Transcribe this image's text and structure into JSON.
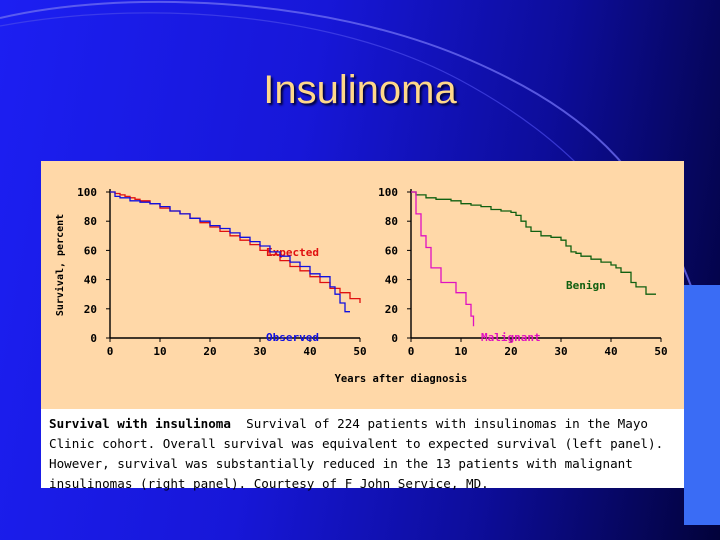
{
  "slide": {
    "title": "Insulinoma"
  },
  "figure": {
    "ylabel": "Survival, percent",
    "xlabel": "Years after diagnosis",
    "caption_title": "Survival with insulinoma",
    "caption_text": "Survival of 224 patients with insulinomas in the Mayo Clinic cohort. Overall survival was equivalent to expected survival (left panel). However, survival was substantially reduced in the 13 patients with malignant insulinomas (right panel). Courtesy of F John Service, MD."
  },
  "colors": {
    "expected": "#e01010",
    "observed": "#1010e0",
    "benign": "#106010",
    "malignant": "#e010c0",
    "figure_bg": "#ffd8a8"
  },
  "chart_data": [
    {
      "type": "line",
      "step": true,
      "xlim": [
        0,
        50
      ],
      "ylim": [
        0,
        100
      ],
      "xticks": [
        0,
        10,
        20,
        30,
        40,
        50
      ],
      "yticks": [
        0,
        20,
        40,
        60,
        80,
        100
      ],
      "series": [
        {
          "name": "Expected",
          "color_key": "expected",
          "label_class": "expected",
          "points": [
            [
              0,
              100
            ],
            [
              1,
              99
            ],
            [
              2,
              98
            ],
            [
              3,
              97
            ],
            [
              4,
              96
            ],
            [
              5,
              95
            ],
            [
              6,
              94
            ],
            [
              8,
              92
            ],
            [
              10,
              89
            ],
            [
              12,
              87
            ],
            [
              14,
              85
            ],
            [
              16,
              82
            ],
            [
              18,
              79
            ],
            [
              20,
              76
            ],
            [
              22,
              73
            ],
            [
              24,
              70
            ],
            [
              26,
              67
            ],
            [
              28,
              64
            ],
            [
              30,
              60
            ],
            [
              32,
              57
            ],
            [
              34,
              53
            ],
            [
              36,
              49
            ],
            [
              38,
              46
            ],
            [
              40,
              42
            ],
            [
              42,
              38
            ],
            [
              44,
              34
            ],
            [
              46,
              31
            ],
            [
              48,
              27
            ],
            [
              50,
              24
            ]
          ]
        },
        {
          "name": "Observed",
          "color_key": "observed",
          "label_class": "observed",
          "points": [
            [
              0,
              100
            ],
            [
              1,
              97
            ],
            [
              2,
              96
            ],
            [
              4,
              94
            ],
            [
              6,
              93
            ],
            [
              8,
              92
            ],
            [
              10,
              90
            ],
            [
              12,
              87
            ],
            [
              14,
              85
            ],
            [
              16,
              82
            ],
            [
              18,
              80
            ],
            [
              20,
              77
            ],
            [
              22,
              75
            ],
            [
              24,
              72
            ],
            [
              26,
              69
            ],
            [
              28,
              66
            ],
            [
              30,
              63
            ],
            [
              32,
              59
            ],
            [
              34,
              56
            ],
            [
              36,
              52
            ],
            [
              38,
              49
            ],
            [
              40,
              44
            ],
            [
              42,
              42
            ],
            [
              44,
              35
            ],
            [
              45,
              30
            ],
            [
              46,
              24
            ],
            [
              47,
              18
            ],
            [
              48,
              18
            ]
          ]
        }
      ]
    },
    {
      "type": "line",
      "step": true,
      "xlim": [
        0,
        50
      ],
      "ylim": [
        0,
        100
      ],
      "xticks": [
        0,
        10,
        20,
        30,
        40,
        50
      ],
      "yticks": [
        0,
        20,
        40,
        60,
        80,
        100
      ],
      "series": [
        {
          "name": "Benign",
          "color_key": "benign",
          "label_class": "benign",
          "points": [
            [
              0,
              100
            ],
            [
              1,
              98
            ],
            [
              3,
              96
            ],
            [
              5,
              95
            ],
            [
              8,
              94
            ],
            [
              10,
              92
            ],
            [
              12,
              91
            ],
            [
              14,
              90
            ],
            [
              16,
              88
            ],
            [
              18,
              87
            ],
            [
              20,
              86
            ],
            [
              21,
              84
            ],
            [
              22,
              80
            ],
            [
              23,
              76
            ],
            [
              24,
              73
            ],
            [
              26,
              70
            ],
            [
              28,
              69
            ],
            [
              30,
              67
            ],
            [
              31,
              63
            ],
            [
              32,
              59
            ],
            [
              33,
              58
            ],
            [
              34,
              56
            ],
            [
              36,
              54
            ],
            [
              38,
              52
            ],
            [
              40,
              50
            ],
            [
              41,
              48
            ],
            [
              42,
              45
            ],
            [
              44,
              38
            ],
            [
              45,
              35
            ],
            [
              47,
              30
            ],
            [
              49,
              30
            ]
          ]
        },
        {
          "name": "Malignant",
          "color_key": "malignant",
          "label_class": "malignant",
          "points": [
            [
              0,
              100
            ],
            [
              1,
              85
            ],
            [
              2,
              70
            ],
            [
              3,
              62
            ],
            [
              4,
              48
            ],
            [
              5,
              48
            ],
            [
              6,
              38
            ],
            [
              8,
              38
            ],
            [
              9,
              31
            ],
            [
              10,
              31
            ],
            [
              11,
              23
            ],
            [
              12,
              15
            ],
            [
              12.5,
              8
            ]
          ]
        }
      ]
    }
  ]
}
